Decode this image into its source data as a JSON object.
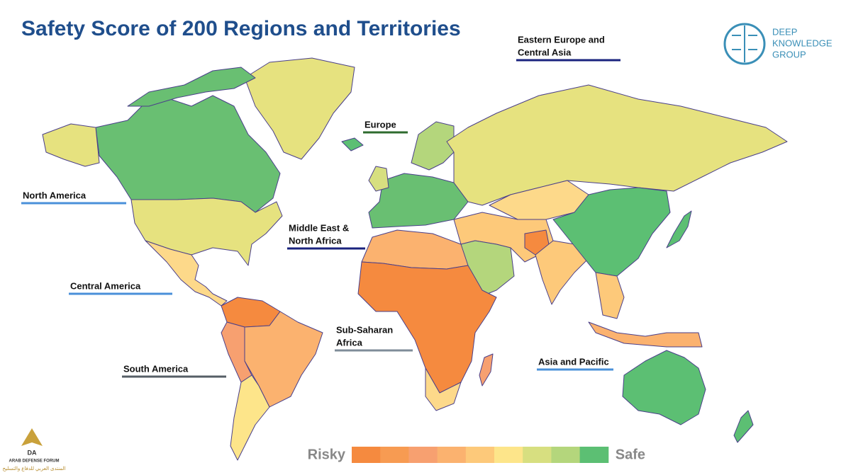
{
  "title": "Safety Score of 200 Regions and Territories",
  "logo": {
    "lines": [
      "DEEP",
      "KNOWLEDGE",
      "GROUP"
    ]
  },
  "regions": [
    {
      "lines": [
        "Eastern Europe and",
        "Central Asia"
      ],
      "color": "#1a237e"
    },
    {
      "lines": [
        "Europe"
      ],
      "color": "#2e6b2e"
    },
    {
      "lines": [
        "North America"
      ],
      "color": "#4a90d9"
    },
    {
      "lines": [
        "Middle East &",
        "North Africa"
      ],
      "color": "#1a237e"
    },
    {
      "lines": [
        "Central America"
      ],
      "color": "#4a90d9"
    },
    {
      "lines": [
        "Sub-Saharan",
        "Africa"
      ],
      "color": "#7f8c99"
    },
    {
      "lines": [
        "South America"
      ],
      "color": "#555e66"
    },
    {
      "lines": [
        "Asia and Pacific"
      ],
      "color": "#4a90d9"
    }
  ],
  "legend": {
    "low": "Risky",
    "high": "Safe",
    "colors": [
      "#f58a3f",
      "#f79b52",
      "#f7a070",
      "#fbb26f",
      "#fdc97a",
      "#fde58a",
      "#d7df80",
      "#b4d67c",
      "#5cbf73"
    ]
  },
  "watermark": {
    "mark": "DA",
    "name": "ARAB DEFENSE FORUM",
    "subtitle": "المنتدى العربي للدفاع والتسليح"
  }
}
